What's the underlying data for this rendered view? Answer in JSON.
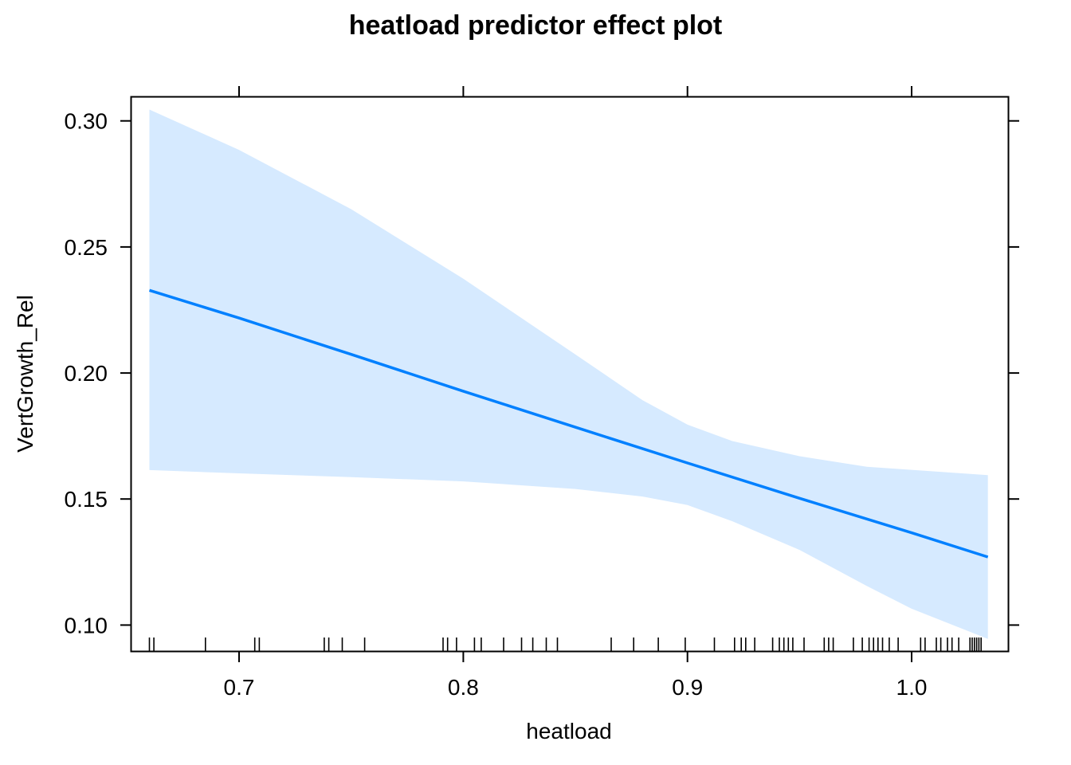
{
  "chart_data": {
    "type": "line",
    "title": "heatload predictor effect plot",
    "xlabel": "heatload",
    "ylabel": "VertGrowth_Rel",
    "xlim": [
      0.652,
      1.043
    ],
    "ylim": [
      0.0897,
      0.3094
    ],
    "xticks": [
      {
        "value": 0.7,
        "label": "0.7"
      },
      {
        "value": 0.8,
        "label": "0.8"
      },
      {
        "value": 0.9,
        "label": "0.9"
      },
      {
        "value": 1.0,
        "label": "1.0"
      }
    ],
    "yticks": [
      {
        "value": 0.1,
        "label": "0.10"
      },
      {
        "value": 0.15,
        "label": "0.15"
      },
      {
        "value": 0.2,
        "label": "0.20"
      },
      {
        "value": 0.25,
        "label": "0.25"
      },
      {
        "value": 0.3,
        "label": "0.30"
      }
    ],
    "grid": false,
    "series": [
      {
        "x": [
          0.66,
          0.7,
          0.75,
          0.8,
          0.85,
          0.9,
          0.95,
          1.0,
          1.034
        ],
        "y": [
          0.2328,
          0.2218,
          0.2074,
          0.1928,
          0.1785,
          0.1643,
          0.1503,
          0.1366,
          0.127
        ],
        "color": "#0080ff"
      }
    ],
    "confidence_band": {
      "x": [
        0.66,
        0.7,
        0.75,
        0.8,
        0.85,
        0.88,
        0.9,
        0.92,
        0.95,
        0.98,
        1.0,
        1.034
      ],
      "upper": [
        0.3045,
        0.2885,
        0.265,
        0.2374,
        0.2074,
        0.1892,
        0.1795,
        0.173,
        0.167,
        0.1628,
        0.1616,
        0.1595
      ],
      "lower": [
        0.1615,
        0.1602,
        0.1587,
        0.157,
        0.154,
        0.151,
        0.1476,
        0.1412,
        0.1298,
        0.1155,
        0.1065,
        0.0945
      ],
      "color": "#d6eaff"
    },
    "rug": [
      0.66,
      0.662,
      0.685,
      0.707,
      0.709,
      0.738,
      0.74,
      0.746,
      0.756,
      0.791,
      0.793,
      0.797,
      0.805,
      0.808,
      0.818,
      0.826,
      0.831,
      0.837,
      0.842,
      0.866,
      0.876,
      0.887,
      0.899,
      0.912,
      0.921,
      0.924,
      0.926,
      0.93,
      0.938,
      0.941,
      0.943,
      0.945,
      0.947,
      0.952,
      0.961,
      0.963,
      0.965,
      0.974,
      0.978,
      0.981,
      0.983,
      0.985,
      0.987,
      0.99,
      0.994,
      1.004,
      1.006,
      1.011,
      1.013,
      1.016,
      1.018,
      1.021,
      1.026,
      1.027,
      1.028,
      1.029,
      1.03,
      1.031
    ]
  }
}
